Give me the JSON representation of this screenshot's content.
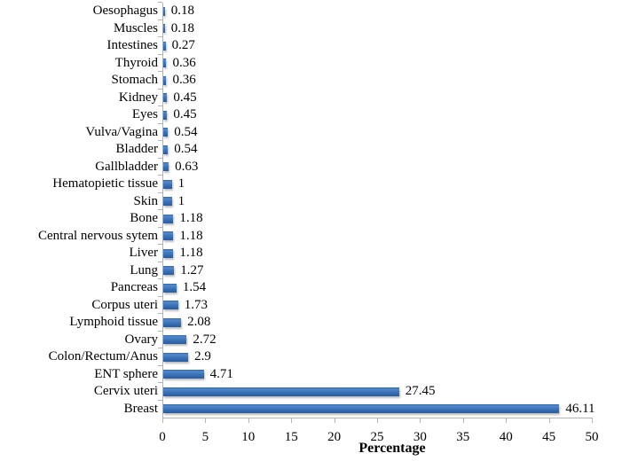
{
  "chart_data": {
    "type": "bar",
    "orientation": "horizontal",
    "title": "",
    "xlabel": "Percentage",
    "ylabel": "",
    "xlim": [
      0,
      50
    ],
    "xticks": [
      0,
      5,
      10,
      15,
      20,
      25,
      30,
      35,
      40,
      45,
      50
    ],
    "grid": false,
    "legend": false,
    "category_order": "top-to-bottom",
    "categories": [
      "Oesophagus",
      "Muscles",
      "Intestines",
      "Thyroid",
      "Stomach",
      "Kidney",
      "Eyes",
      "Vulva/Vagina",
      "Bladder",
      "Gallbladder",
      "Hematopietic tissue",
      "Skin",
      "Bone",
      "Central nervous sytem",
      "Liver",
      "Lung",
      "Pancreas",
      "Corpus uteri",
      "Lymphoid tissue",
      "Ovary",
      "Colon/Rectum/Anus",
      "ENT sphere",
      "Cervix uteri",
      "Breast"
    ],
    "values": [
      0.18,
      0.18,
      0.27,
      0.36,
      0.36,
      0.45,
      0.45,
      0.54,
      0.54,
      0.63,
      1,
      1,
      1.18,
      1.18,
      1.18,
      1.27,
      1.54,
      1.73,
      2.08,
      2.72,
      2.9,
      4.71,
      27.45,
      46.11
    ],
    "value_labels": [
      "0.18",
      "0.18",
      "0.27",
      "0.36",
      "0.36",
      "0.45",
      "0.45",
      "0.54",
      "0.54",
      "0.63",
      "1",
      "1",
      "1.18",
      "1.18",
      "1.18",
      "1.27",
      "1.54",
      "1.73",
      "2.08",
      "2.72",
      "2.9",
      "4.71",
      "27.45",
      "46.11"
    ],
    "bar_color": "#3a72b8",
    "axis_color": "#b3b3b3",
    "text_color": "#000000",
    "background_color": "#ffffff"
  }
}
